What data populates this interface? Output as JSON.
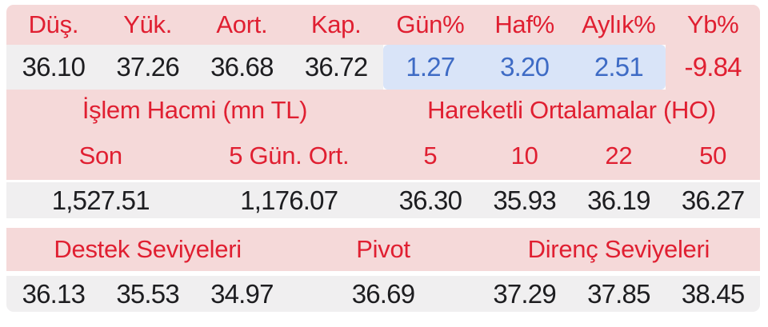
{
  "colors": {
    "header_pink": "#f5d9d9",
    "value_gray": "#f0eff0",
    "highlight_blue_bg": "#d9e4f8",
    "red_text": "#e01f31",
    "blue_text": "#3e6bc5",
    "dark_text": "#1d1d20"
  },
  "summary": {
    "headers": {
      "low": "Düş.",
      "high": "Yük.",
      "vwap": "Aort.",
      "close": "Kap.",
      "day_pct": "Gün%",
      "week_pct": "Haf%",
      "month_pct": "Aylık%",
      "ytd_pct": "Yb%"
    },
    "values": {
      "low": "36.10",
      "high": "37.26",
      "vwap": "36.68",
      "close": "36.72",
      "day_pct": "1.27",
      "week_pct": "3.20",
      "month_pct": "2.51",
      "ytd_pct": "-9.84"
    }
  },
  "volume": {
    "title": "İşlem Hacmi (mn TL)",
    "col_last": "Son",
    "col_avg": "5 Gün. Ort.",
    "last": "1,527.51",
    "avg": "1,176.07"
  },
  "moving_averages": {
    "title": "Hareketli Ortalamalar (HO)",
    "periods": [
      "5",
      "10",
      "22",
      "50"
    ],
    "values": [
      "36.30",
      "35.93",
      "36.19",
      "36.27"
    ]
  },
  "levels": {
    "support_title": "Destek Seviyeleri",
    "pivot_title": "Pivot",
    "resistance_title": "Direnç Seviyeleri",
    "support": [
      "36.13",
      "35.53",
      "34.97"
    ],
    "pivot": "36.69",
    "resistance": [
      "37.29",
      "37.85",
      "38.45"
    ]
  }
}
